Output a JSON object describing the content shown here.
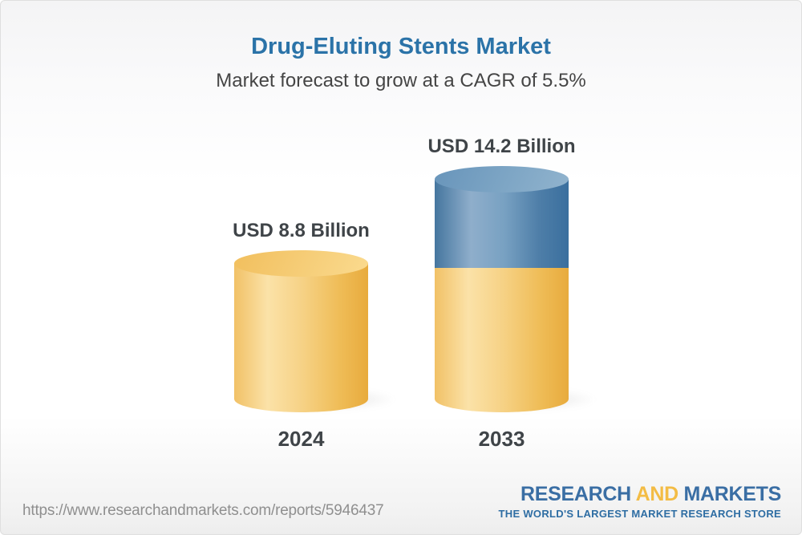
{
  "header": {
    "title": "Drug-Eluting Stents Market",
    "subtitle": "Market forecast to grow at a CAGR of 5.5%"
  },
  "chart_data": {
    "type": "bar",
    "title": "Drug-Eluting Stents Market",
    "subtitle": "Market forecast to grow at a CAGR of 5.5%",
    "unit": "USD Billion",
    "cagr_percent": 5.5,
    "categories": [
      "2024",
      "2033"
    ],
    "values": [
      8.8,
      14.2
    ],
    "bars": [
      {
        "year": "2024",
        "value": 8.8,
        "label": "USD 8.8 Billion",
        "segments": [
          {
            "name": "base",
            "value": 8.8,
            "color": "#F2C469"
          }
        ]
      },
      {
        "year": "2033",
        "value": 14.2,
        "label": "USD 14.2 Billion",
        "segments": [
          {
            "name": "base",
            "value": 8.8,
            "color": "#F2C469"
          },
          {
            "name": "growth",
            "value": 5.4,
            "color": "#5687B1"
          }
        ]
      }
    ],
    "legend": "none",
    "grid": false,
    "axes": "none",
    "bar_style": "3d-cylinder"
  },
  "footer": {
    "source_url": "https://www.researchandmarkets.com/reports/5946437",
    "logo": {
      "part1": "RESEARCH",
      "part2": "AND",
      "part3": "MARKETS",
      "tagline": "THE WORLD'S LARGEST MARKET RESEARCH STORE"
    }
  },
  "colors": {
    "title_blue": "#2B73A8",
    "subtitle_gray": "#454545",
    "label_dark": "#3F4448",
    "bar_yellow": "#F2C469",
    "bar_blue": "#5687B1",
    "url_gray": "#8F8F8F",
    "logo_blue": "#3A6EA4",
    "logo_yellow": "#F3BC45"
  }
}
